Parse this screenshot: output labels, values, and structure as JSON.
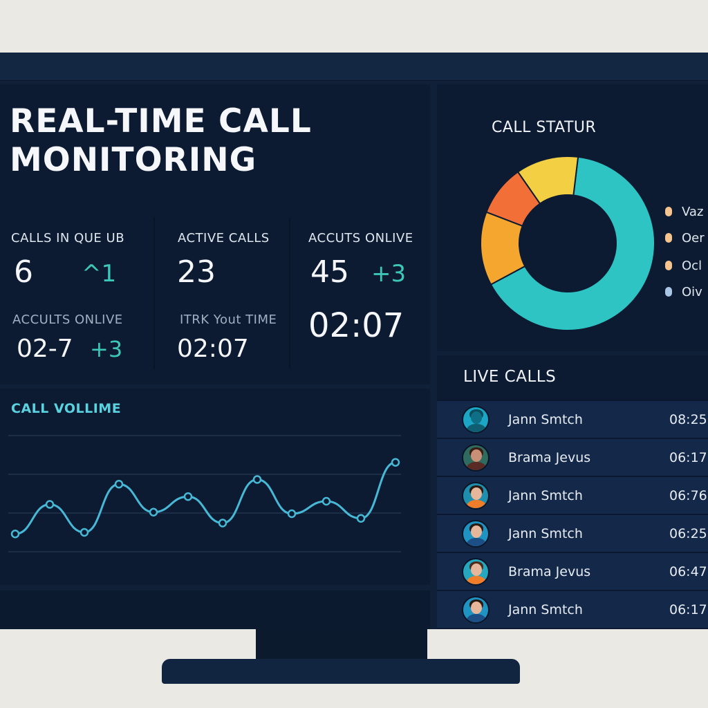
{
  "dashboard": {
    "title": "REAL-TIME CALL MONITORING"
  },
  "stats": {
    "calls_in_queue": {
      "label": "CALLS IN QUE UB",
      "value": "6",
      "delta": "^1"
    },
    "active_calls": {
      "label": "ACTIVE CALLS",
      "value": "23"
    },
    "agents_online": {
      "label": "ACCUTS ONLIVE",
      "value": "45",
      "delta": "+3"
    },
    "agents_online_2": {
      "label": "ACCULTS ONLIVE",
      "value": "02-7",
      "delta": "+3"
    },
    "wait_time": {
      "label": "ITRK Yout TIME",
      "value": "02:07"
    },
    "big_time": {
      "value": "02:07"
    }
  },
  "call_volume": {
    "title": "CALL VOLLIME",
    "points": [
      1.5,
      3.4,
      1.6,
      4.7,
      2.9,
      3.9,
      2.2,
      5.0,
      2.8,
      3.6,
      2.5,
      6.1
    ],
    "ylim": [
      0,
      8
    ],
    "line_color": "#47b9d6"
  },
  "call_status": {
    "title": "CALL STATUR",
    "segments": [
      {
        "value": 62,
        "color": "#2ec4c4"
      },
      {
        "value": 13,
        "color": "#f4a62f"
      },
      {
        "value": 9,
        "color": "#f26f38"
      },
      {
        "value": 11,
        "color": "#f2cf43"
      }
    ],
    "legend": [
      {
        "label": "Vaz",
        "color": "#f6c58f"
      },
      {
        "label": "Oer",
        "color": "#f6c58f"
      },
      {
        "label": "Ocl",
        "color": "#f6c58f"
      },
      {
        "label": "Oiv",
        "color": "#a9c6e6"
      }
    ]
  },
  "live_calls": {
    "title": "LIVE CALLS",
    "rows": [
      {
        "name": "Jann Smtch",
        "time": "08:25"
      },
      {
        "name": "Brama Jevus",
        "time": "06:17"
      },
      {
        "name": "Jann Smtch",
        "time": "06:76"
      },
      {
        "name": "Jann Smtch",
        "time": "06:25"
      },
      {
        "name": "Brama Jevus",
        "time": "06:47"
      },
      {
        "name": "Jann Smtch",
        "time": "06:17"
      }
    ]
  },
  "colors": {
    "accent": "#3cc7b8",
    "background": "#0d1b32"
  }
}
